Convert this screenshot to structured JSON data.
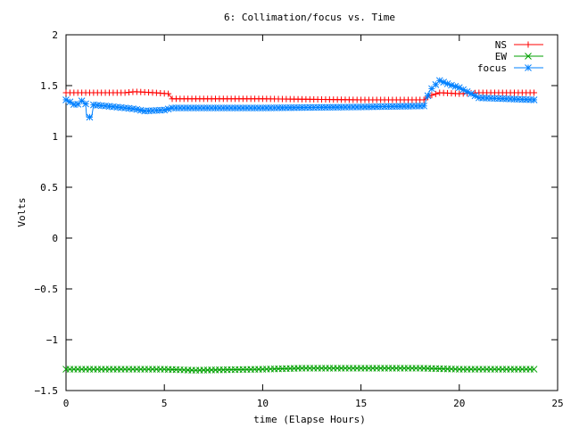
{
  "chart_data": {
    "type": "line",
    "title": "6: Collimation/focus vs. Time",
    "xlabel": "time (Elapse Hours)",
    "ylabel": "Volts",
    "xlim": [
      0,
      25
    ],
    "ylim": [
      -1.5,
      2
    ],
    "x_ticks": [
      0,
      5,
      10,
      15,
      20,
      25
    ],
    "y_ticks": [
      -1.5,
      -1,
      -0.5,
      0,
      0.5,
      1,
      1.5,
      2
    ],
    "x_tick_labels": [
      "0",
      "5",
      "10",
      "15",
      "20",
      "25"
    ],
    "y_tick_labels": [
      "−1.5",
      "−1",
      "−0.5",
      "0",
      "0.5",
      "1",
      "1.5",
      "2"
    ],
    "grid": false,
    "legend_position": "top-right",
    "series": [
      {
        "name": "NS",
        "color": "#ff0000",
        "marker": "plus",
        "x": [
          0,
          1,
          2,
          3,
          3.5,
          4.5,
          5.2,
          5.4,
          10,
          15,
          18.2,
          18.5,
          19,
          20,
          21,
          22,
          23.8
        ],
        "values": [
          1.43,
          1.43,
          1.43,
          1.43,
          1.44,
          1.43,
          1.42,
          1.37,
          1.37,
          1.36,
          1.36,
          1.4,
          1.43,
          1.42,
          1.43,
          1.43,
          1.43
        ]
      },
      {
        "name": "EW",
        "color": "#00a000",
        "marker": "cross",
        "x": [
          0,
          5,
          6.5,
          10,
          12,
          15,
          18,
          20,
          23.8
        ],
        "values": [
          -1.29,
          -1.29,
          -1.3,
          -1.29,
          -1.28,
          -1.28,
          -1.28,
          -1.29,
          -1.29
        ]
      },
      {
        "name": "focus",
        "color": "#0080ff",
        "marker": "star",
        "x": [
          0,
          0.3,
          0.5,
          0.8,
          1.0,
          1.05,
          1.3,
          1.4,
          2.0,
          3.0,
          3.5,
          4.0,
          5.0,
          5.4,
          10,
          15,
          18.2,
          18.5,
          19.0,
          19.5,
          20.0,
          21.0,
          23.8
        ],
        "values": [
          1.36,
          1.33,
          1.3,
          1.35,
          1.32,
          1.19,
          1.19,
          1.31,
          1.3,
          1.28,
          1.27,
          1.25,
          1.26,
          1.28,
          1.28,
          1.29,
          1.3,
          1.45,
          1.55,
          1.51,
          1.48,
          1.38,
          1.36
        ]
      }
    ]
  }
}
